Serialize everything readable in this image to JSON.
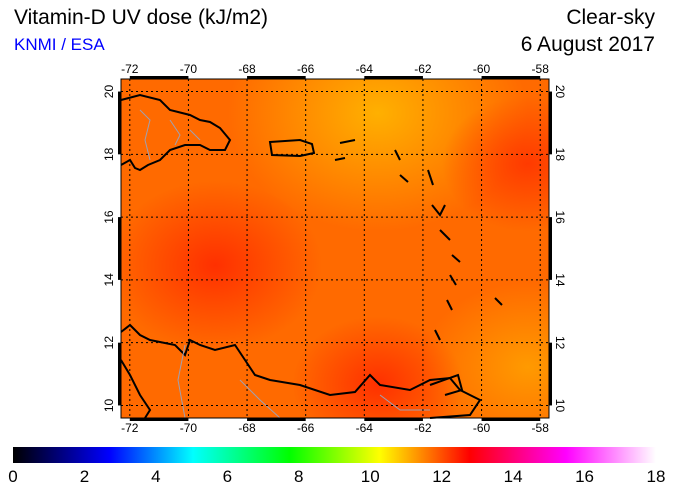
{
  "header": {
    "title": "Vitamin-D UV dose (kJ/m2)",
    "organization": "KNMI / ESA",
    "condition": "Clear-sky",
    "date": "6 August 2017"
  },
  "map": {
    "lon_ticks": [
      "-72",
      "-70",
      "-68",
      "-66",
      "-64",
      "-62",
      "-60",
      "-58"
    ],
    "lat_ticks": [
      "20",
      "18",
      "16",
      "14",
      "12",
      "10"
    ],
    "lon_range": [
      -72.3,
      -57.7
    ],
    "lat_range": [
      9.6,
      20.4
    ]
  },
  "colorbar": {
    "labels": [
      "0",
      "2",
      "4",
      "6",
      "8",
      "10",
      "12",
      "14",
      "16",
      "18"
    ],
    "range": [
      0,
      18
    ],
    "stops": [
      "#000000",
      "#0000ff",
      "#00ffff",
      "#00ff00",
      "#ffff00",
      "#ff8000",
      "#ff0000",
      "#ff00ff",
      "#ffffff"
    ]
  }
}
